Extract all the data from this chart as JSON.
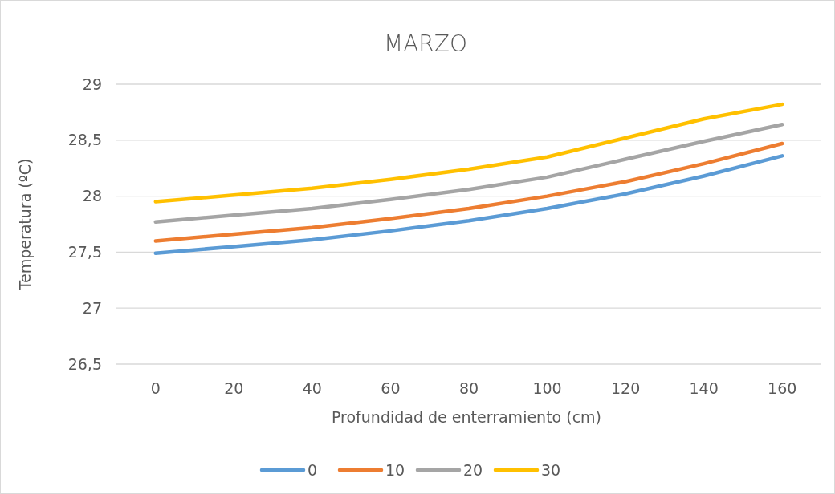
{
  "chart_data": {
    "type": "line",
    "title": "MARZO",
    "xlabel": "Profundidad de enterramiento (cm)",
    "ylabel": "Temperatura (ºC)",
    "categories": [
      "0",
      "20",
      "40",
      "60",
      "80",
      "100",
      "120",
      "140",
      "160"
    ],
    "series": [
      {
        "name": "0",
        "color": "#5b9bd5",
        "values": [
          27.49,
          27.55,
          27.61,
          27.69,
          27.78,
          27.89,
          28.02,
          28.18,
          28.36
        ]
      },
      {
        "name": "10",
        "color": "#ed7d31",
        "values": [
          27.6,
          27.66,
          27.72,
          27.8,
          27.89,
          28.0,
          28.13,
          28.29,
          28.47
        ]
      },
      {
        "name": "20",
        "color": "#a5a5a5",
        "values": [
          27.77,
          27.83,
          27.89,
          27.97,
          28.06,
          28.17,
          28.33,
          28.49,
          28.64
        ]
      },
      {
        "name": "30",
        "color": "#ffc000",
        "values": [
          27.95,
          28.01,
          28.07,
          28.15,
          28.24,
          28.35,
          28.52,
          28.69,
          28.82
        ]
      }
    ],
    "ylim": [
      26.5,
      29
    ],
    "yticks": [
      {
        "value": 26.5,
        "label": "26,5"
      },
      27,
      {
        "value": 27.5,
        "label": "27,5"
      },
      28,
      {
        "value": 28.5,
        "label": "28,5"
      },
      29
    ],
    "grid": "y",
    "legend": "bottom",
    "marker": "none",
    "line_style": "solid"
  }
}
